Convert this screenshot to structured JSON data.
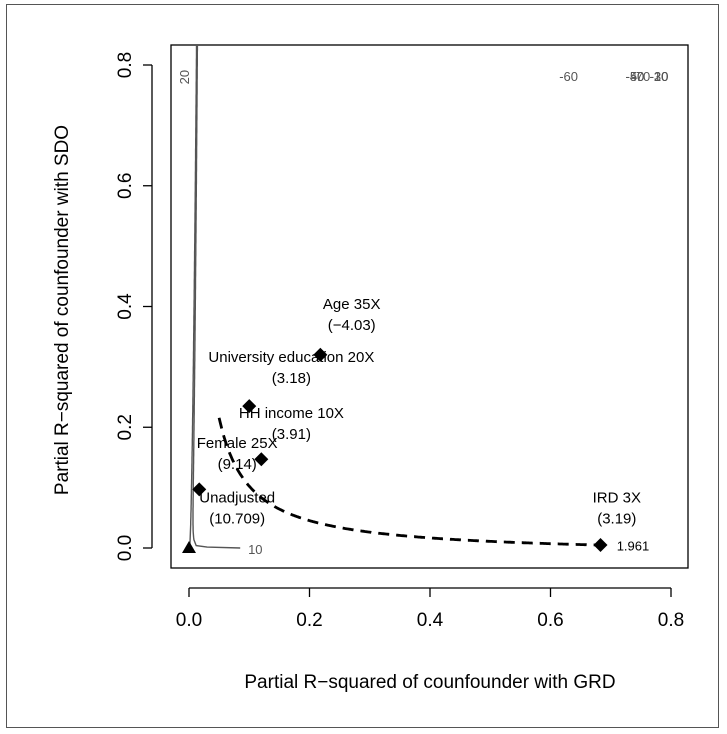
{
  "chart_data": {
    "type": "contour",
    "xlabel": "Partial R−squared of counfounder with GRD",
    "ylabel": "Partial R−squared of counfounder with SDO",
    "xlim": [
      0,
      0.8
    ],
    "ylim": [
      0,
      0.8
    ],
    "x_ticks": [
      "0.0",
      "0.2",
      "0.4",
      "0.6",
      "0.8"
    ],
    "y_ticks": [
      "0.0",
      "0.2",
      "0.4",
      "0.6",
      "0.8"
    ],
    "contour_line_color": "#555555",
    "threshold_line_color": "#000000",
    "unadjusted_value": 10.709,
    "contour_levels": [
      {
        "value": 20,
        "label": "20"
      },
      {
        "value": 10,
        "label": "10"
      },
      {
        "value": -10,
        "label": "-10"
      },
      {
        "value": -20,
        "label": "-20"
      },
      {
        "value": -30,
        "label": "-30"
      },
      {
        "value": -40,
        "label": "-40"
      },
      {
        "value": -50,
        "label": "-50"
      },
      {
        "value": -60,
        "label": "-60"
      },
      {
        "value": -70,
        "label": "-70"
      }
    ],
    "threshold": {
      "value": 1.961,
      "label": "1.961",
      "style": "dashed"
    },
    "points": [
      {
        "name": "Unadjusted",
        "value_label": "(10.709)",
        "x": 0.0,
        "y": 0.0,
        "marker": "triangle"
      },
      {
        "name": "Female 25X",
        "value_label": "(9.14)",
        "x": 0.017,
        "y": 0.097,
        "marker": "diamond"
      },
      {
        "name": "HH income 10X",
        "value_label": "(3.91)",
        "x": 0.12,
        "y": 0.147,
        "marker": "diamond"
      },
      {
        "name": "University education 20X",
        "value_label": "(3.18)",
        "x": 0.1,
        "y": 0.235,
        "marker": "diamond"
      },
      {
        "name": "Age 35X",
        "value_label": "(−4.03)",
        "x": 0.218,
        "y": 0.32,
        "marker": "diamond"
      },
      {
        "name": "IRD 3X",
        "value_label": "(3.19)",
        "x": 0.683,
        "y": 0.005,
        "marker": "diamond"
      }
    ]
  }
}
